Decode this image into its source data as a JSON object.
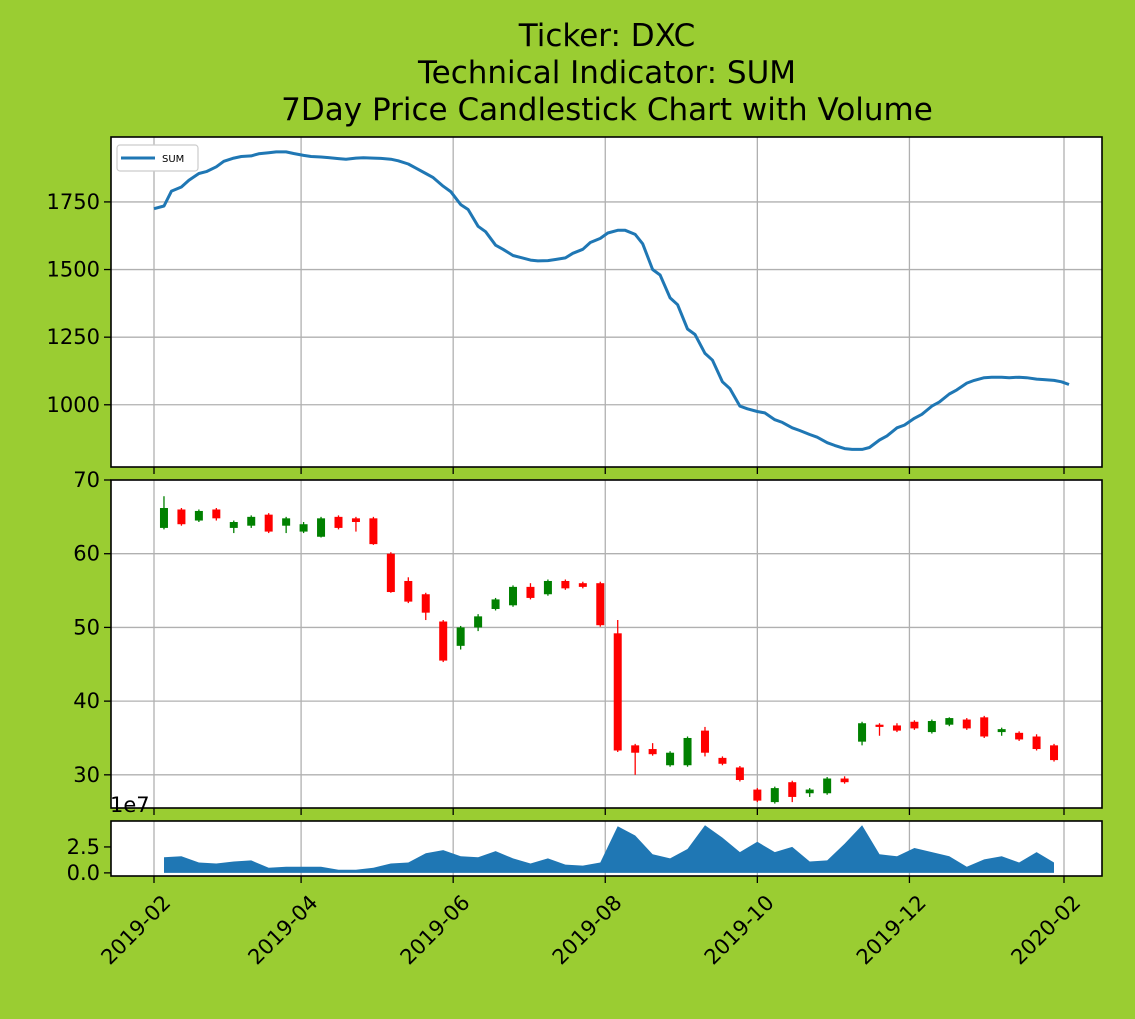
{
  "colors": {
    "background": "#9acd32",
    "line": "#1f77b4",
    "up": "#008000",
    "down": "#ff0000",
    "volume": "#1f77b4",
    "grid": "#b0b0b0"
  },
  "chart_data": {
    "type": "candlestick",
    "title_lines": [
      "Ticker: DXC",
      "Technical Indicator: SUM",
      "7Day Price Candlestick Chart with Volume"
    ],
    "x_ticks": [
      "2019-02",
      "2019-04",
      "2019-06",
      "2019-08",
      "2019-10",
      "2019-12",
      "2020-02"
    ],
    "indicator": {
      "legend": "SUM",
      "ylim": [
        770,
        1990
      ],
      "y_ticks": [
        "1000",
        "1250",
        "1500",
        "1750"
      ],
      "points": [
        [
          "2019-02-01",
          1725
        ],
        [
          "2019-02-05",
          1735
        ],
        [
          "2019-02-08",
          1790
        ],
        [
          "2019-02-12",
          1805
        ],
        [
          "2019-02-15",
          1830
        ],
        [
          "2019-02-19",
          1855
        ],
        [
          "2019-02-22",
          1862
        ],
        [
          "2019-02-26",
          1880
        ],
        [
          "2019-03-01",
          1900
        ],
        [
          "2019-03-05",
          1912
        ],
        [
          "2019-03-08",
          1918
        ],
        [
          "2019-03-12",
          1920
        ],
        [
          "2019-03-15",
          1928
        ],
        [
          "2019-03-19",
          1932
        ],
        [
          "2019-03-22",
          1935
        ],
        [
          "2019-03-26",
          1935
        ],
        [
          "2019-03-29",
          1929
        ],
        [
          "2019-04-02",
          1922
        ],
        [
          "2019-04-05",
          1918
        ],
        [
          "2019-04-09",
          1916
        ],
        [
          "2019-04-12",
          1914
        ],
        [
          "2019-04-16",
          1910
        ],
        [
          "2019-04-19",
          1908
        ],
        [
          "2019-04-23",
          1912
        ],
        [
          "2019-04-26",
          1913
        ],
        [
          "2019-04-30",
          1912
        ],
        [
          "2019-05-03",
          1911
        ],
        [
          "2019-05-07",
          1908
        ],
        [
          "2019-05-10",
          1902
        ],
        [
          "2019-05-14",
          1890
        ],
        [
          "2019-05-17",
          1875
        ],
        [
          "2019-05-21",
          1855
        ],
        [
          "2019-05-24",
          1840
        ],
        [
          "2019-05-28",
          1808
        ],
        [
          "2019-05-31",
          1788
        ],
        [
          "2019-06-04",
          1740
        ],
        [
          "2019-06-07",
          1722
        ],
        [
          "2019-06-11",
          1660
        ],
        [
          "2019-06-14",
          1640
        ],
        [
          "2019-06-18",
          1590
        ],
        [
          "2019-06-21",
          1575
        ],
        [
          "2019-06-25",
          1552
        ],
        [
          "2019-06-28",
          1545
        ],
        [
          "2019-07-02",
          1535
        ],
        [
          "2019-07-05",
          1532
        ],
        [
          "2019-07-09",
          1533
        ],
        [
          "2019-07-12",
          1537
        ],
        [
          "2019-07-16",
          1543
        ],
        [
          "2019-07-19",
          1560
        ],
        [
          "2019-07-23",
          1575
        ],
        [
          "2019-07-26",
          1600
        ],
        [
          "2019-07-30",
          1615
        ],
        [
          "2019-08-02",
          1635
        ],
        [
          "2019-08-06",
          1645
        ],
        [
          "2019-08-09",
          1645
        ],
        [
          "2019-08-13",
          1630
        ],
        [
          "2019-08-16",
          1595
        ],
        [
          "2019-08-20",
          1500
        ],
        [
          "2019-08-23",
          1480
        ],
        [
          "2019-08-27",
          1395
        ],
        [
          "2019-08-30",
          1370
        ],
        [
          "2019-09-03",
          1280
        ],
        [
          "2019-09-06",
          1260
        ],
        [
          "2019-09-10",
          1190
        ],
        [
          "2019-09-13",
          1165
        ],
        [
          "2019-09-17",
          1085
        ],
        [
          "2019-09-20",
          1060
        ],
        [
          "2019-09-24",
          995
        ],
        [
          "2019-09-27",
          985
        ],
        [
          "2019-10-01",
          975
        ],
        [
          "2019-10-04",
          970
        ],
        [
          "2019-10-08",
          945
        ],
        [
          "2019-10-11",
          935
        ],
        [
          "2019-10-15",
          915
        ],
        [
          "2019-10-18",
          905
        ],
        [
          "2019-10-22",
          890
        ],
        [
          "2019-10-25",
          880
        ],
        [
          "2019-10-29",
          860
        ],
        [
          "2019-11-01",
          850
        ],
        [
          "2019-11-05",
          838
        ],
        [
          "2019-11-08",
          835
        ],
        [
          "2019-11-12",
          835
        ],
        [
          "2019-11-15",
          842
        ],
        [
          "2019-11-19",
          870
        ],
        [
          "2019-11-22",
          885
        ],
        [
          "2019-11-26",
          915
        ],
        [
          "2019-11-29",
          925
        ],
        [
          "2019-12-03",
          950
        ],
        [
          "2019-12-06",
          965
        ],
        [
          "2019-12-10",
          995
        ],
        [
          "2019-12-13",
          1010
        ],
        [
          "2019-12-17",
          1040
        ],
        [
          "2019-12-20",
          1055
        ],
        [
          "2019-12-24",
          1080
        ],
        [
          "2019-12-27",
          1090
        ],
        [
          "2019-12-31",
          1100
        ],
        [
          "2020-01-03",
          1102
        ],
        [
          "2020-01-07",
          1102
        ],
        [
          "2020-01-10",
          1100
        ],
        [
          "2020-01-14",
          1102
        ],
        [
          "2020-01-17",
          1100
        ],
        [
          "2020-01-21",
          1095
        ],
        [
          "2020-01-24",
          1093
        ],
        [
          "2020-01-28",
          1090
        ],
        [
          "2020-01-31",
          1085
        ],
        [
          "2020-02-03",
          1075
        ]
      ]
    },
    "price": {
      "ylim": [
        25.5,
        70
      ],
      "y_ticks": [
        "30",
        "40",
        "50",
        "60",
        "70"
      ],
      "candles": [
        [
          "2019-02-05",
          63.5,
          66.2,
          63.3,
          67.8
        ],
        [
          "2019-02-12",
          66.0,
          64.0,
          63.8,
          66.2
        ],
        [
          "2019-02-19",
          64.5,
          65.8,
          64.3,
          66.0
        ],
        [
          "2019-02-26",
          66.0,
          64.8,
          64.5,
          66.2
        ],
        [
          "2019-03-05",
          63.5,
          64.3,
          62.8,
          64.5
        ],
        [
          "2019-03-12",
          63.8,
          65.0,
          63.5,
          65.2
        ],
        [
          "2019-03-19",
          65.3,
          63.0,
          62.8,
          65.5
        ],
        [
          "2019-03-26",
          63.8,
          64.8,
          62.8,
          65.0
        ],
        [
          "2019-04-02",
          63.0,
          64.0,
          62.8,
          64.3
        ],
        [
          "2019-04-09",
          62.3,
          64.8,
          62.2,
          65.0
        ],
        [
          "2019-04-16",
          65.0,
          63.5,
          63.3,
          65.2
        ],
        [
          "2019-04-23",
          64.8,
          64.3,
          63.0,
          65.0
        ],
        [
          "2019-04-30",
          64.8,
          61.3,
          61.2,
          65.0
        ],
        [
          "2019-05-07",
          60.0,
          54.8,
          54.7,
          60.2
        ],
        [
          "2019-05-14",
          56.3,
          53.5,
          53.3,
          56.8
        ],
        [
          "2019-05-21",
          54.5,
          52.0,
          51.0,
          54.7
        ],
        [
          "2019-05-28",
          50.8,
          45.5,
          45.3,
          51.0
        ],
        [
          "2019-06-04",
          47.5,
          50.0,
          47.0,
          50.2
        ],
        [
          "2019-06-11",
          50.0,
          51.5,
          49.5,
          51.8
        ],
        [
          "2019-06-18",
          52.5,
          53.8,
          52.3,
          54.0
        ],
        [
          "2019-06-25",
          53.0,
          55.5,
          52.8,
          55.7
        ],
        [
          "2019-07-02",
          55.5,
          54.0,
          53.8,
          56.0
        ],
        [
          "2019-07-09",
          54.5,
          56.3,
          54.3,
          56.5
        ],
        [
          "2019-07-16",
          56.3,
          55.3,
          55.1,
          56.5
        ],
        [
          "2019-07-23",
          56.0,
          55.5,
          55.3,
          56.2
        ],
        [
          "2019-07-30",
          56.0,
          50.3,
          50.1,
          56.2
        ],
        [
          "2019-08-06",
          49.2,
          33.3,
          33.1,
          51.0
        ],
        [
          "2019-08-13",
          34.0,
          33.0,
          30.0,
          34.2
        ],
        [
          "2019-08-20",
          33.5,
          32.8,
          32.6,
          34.3
        ],
        [
          "2019-08-27",
          31.3,
          33.0,
          31.1,
          33.2
        ],
        [
          "2019-09-03",
          31.3,
          35.0,
          31.1,
          35.2
        ],
        [
          "2019-09-10",
          36.0,
          33.0,
          32.5,
          36.5
        ],
        [
          "2019-09-17",
          32.3,
          31.5,
          31.3,
          32.5
        ],
        [
          "2019-09-24",
          31.0,
          29.3,
          29.1,
          31.2
        ],
        [
          "2019-10-01",
          28.0,
          26.5,
          26.3,
          28.2
        ],
        [
          "2019-10-08",
          26.3,
          28.2,
          26.1,
          28.4
        ],
        [
          "2019-10-15",
          29.0,
          27.0,
          26.3,
          29.2
        ],
        [
          "2019-10-22",
          27.5,
          28.0,
          27.0,
          28.2
        ],
        [
          "2019-10-29",
          27.5,
          29.5,
          27.3,
          29.7
        ],
        [
          "2019-11-05",
          29.5,
          29.0,
          28.8,
          29.8
        ],
        [
          "2019-11-12",
          34.5,
          37.0,
          34.0,
          37.2
        ],
        [
          "2019-11-19",
          36.8,
          36.5,
          35.3,
          37.0
        ],
        [
          "2019-11-26",
          36.7,
          36.0,
          35.8,
          37.0
        ],
        [
          "2019-12-03",
          37.2,
          36.3,
          36.1,
          37.4
        ],
        [
          "2019-12-10",
          35.8,
          37.3,
          35.6,
          37.5
        ],
        [
          "2019-12-17",
          36.8,
          37.7,
          36.6,
          37.8
        ],
        [
          "2019-12-24",
          37.5,
          36.3,
          36.1,
          37.7
        ],
        [
          "2019-12-31",
          37.8,
          35.2,
          35.0,
          38.0
        ],
        [
          "2020-01-07",
          35.8,
          36.2,
          35.3,
          36.4
        ],
        [
          "2020-01-14",
          35.7,
          34.8,
          34.6,
          35.9
        ],
        [
          "2020-01-21",
          35.2,
          33.5,
          33.3,
          35.5
        ],
        [
          "2020-01-28",
          34.0,
          32.0,
          31.8,
          34.2
        ]
      ]
    },
    "volume": {
      "exponent_label": "1e7",
      "ylim": [
        -0.3,
        5.0
      ],
      "y_ticks": [
        {
          "label": "0.0",
          "v": 0
        },
        {
          "label": "2.5",
          "v": 2.5
        }
      ],
      "points": [
        [
          "2019-02-05",
          1.5
        ],
        [
          "2019-02-12",
          1.6
        ],
        [
          "2019-02-19",
          1.0
        ],
        [
          "2019-02-26",
          0.9
        ],
        [
          "2019-03-05",
          1.1
        ],
        [
          "2019-03-12",
          1.2
        ],
        [
          "2019-03-19",
          0.5
        ],
        [
          "2019-03-26",
          0.6
        ],
        [
          "2019-04-02",
          0.6
        ],
        [
          "2019-04-09",
          0.6
        ],
        [
          "2019-04-16",
          0.3
        ],
        [
          "2019-04-23",
          0.3
        ],
        [
          "2019-04-30",
          0.5
        ],
        [
          "2019-05-07",
          0.9
        ],
        [
          "2019-05-14",
          1.0
        ],
        [
          "2019-05-21",
          1.9
        ],
        [
          "2019-05-28",
          2.2
        ],
        [
          "2019-06-04",
          1.6
        ],
        [
          "2019-06-11",
          1.5
        ],
        [
          "2019-06-18",
          2.1
        ],
        [
          "2019-06-25",
          1.4
        ],
        [
          "2019-07-02",
          0.9
        ],
        [
          "2019-07-09",
          1.4
        ],
        [
          "2019-07-16",
          0.8
        ],
        [
          "2019-07-23",
          0.7
        ],
        [
          "2019-07-30",
          1.0
        ],
        [
          "2019-08-06",
          4.5
        ],
        [
          "2019-08-13",
          3.6
        ],
        [
          "2019-08-20",
          1.8
        ],
        [
          "2019-08-27",
          1.4
        ],
        [
          "2019-09-03",
          2.3
        ],
        [
          "2019-09-10",
          4.6
        ],
        [
          "2019-09-17",
          3.4
        ],
        [
          "2019-09-24",
          2.0
        ],
        [
          "2019-10-01",
          3.0
        ],
        [
          "2019-10-08",
          2.0
        ],
        [
          "2019-10-15",
          2.5
        ],
        [
          "2019-10-22",
          1.1
        ],
        [
          "2019-10-29",
          1.2
        ],
        [
          "2019-11-05",
          2.8
        ],
        [
          "2019-11-12",
          4.6
        ],
        [
          "2019-11-19",
          1.8
        ],
        [
          "2019-11-26",
          1.6
        ],
        [
          "2019-12-03",
          2.4
        ],
        [
          "2019-12-10",
          2.0
        ],
        [
          "2019-12-17",
          1.6
        ],
        [
          "2019-12-24",
          0.6
        ],
        [
          "2019-12-31",
          1.3
        ],
        [
          "2020-01-07",
          1.6
        ],
        [
          "2020-01-14",
          1.0
        ],
        [
          "2020-01-21",
          2.0
        ],
        [
          "2020-01-28",
          1.0
        ]
      ]
    }
  }
}
